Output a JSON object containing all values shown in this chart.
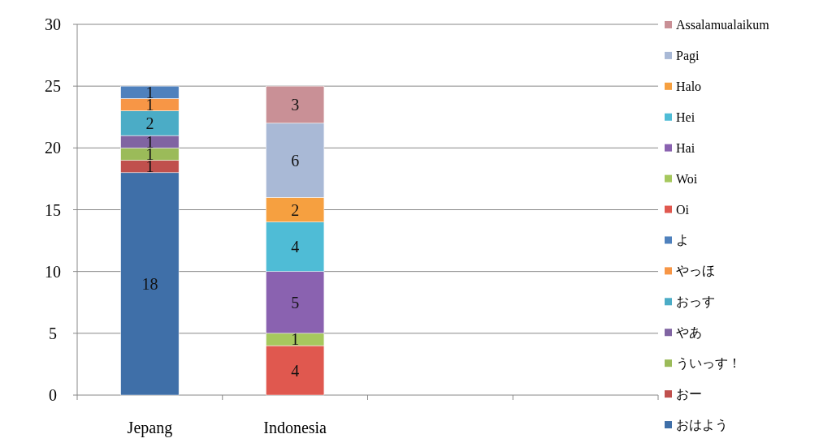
{
  "chart_data": {
    "type": "bar",
    "stacked": true,
    "categories": [
      "Jepang",
      "Indonesia",
      null,
      null
    ],
    "series": [
      {
        "name": "おはよう",
        "color": "#3f6fa8",
        "values": [
          18,
          null,
          null,
          null
        ]
      },
      {
        "name": "おー",
        "color": "#c0504d",
        "values": [
          1,
          null,
          null,
          null
        ]
      },
      {
        "name": "ういっす！",
        "color": "#9bbb59",
        "values": [
          1,
          null,
          null,
          null
        ]
      },
      {
        "name": "やあ",
        "color": "#8064a2",
        "values": [
          1,
          null,
          null,
          null
        ]
      },
      {
        "name": "おっす",
        "color": "#4bacc6",
        "values": [
          2,
          null,
          null,
          null
        ]
      },
      {
        "name": "やっほ",
        "color": "#f79646",
        "values": [
          1,
          null,
          null,
          null
        ]
      },
      {
        "name": "よ",
        "color": "#4f81bd",
        "values": [
          1,
          null,
          null,
          null
        ]
      },
      {
        "name": "Oi",
        "color": "#e0584f",
        "values": [
          null,
          4,
          null,
          null
        ]
      },
      {
        "name": "Woi",
        "color": "#a6c85e",
        "values": [
          null,
          1,
          null,
          null
        ]
      },
      {
        "name": "Hai",
        "color": "#8a62b0",
        "values": [
          null,
          5,
          null,
          null
        ]
      },
      {
        "name": "Hei",
        "color": "#4fbcd6",
        "values": [
          null,
          4,
          null,
          null
        ]
      },
      {
        "name": "Halo",
        "color": "#f6a040",
        "values": [
          null,
          2,
          null,
          null
        ]
      },
      {
        "name": "Pagi",
        "color": "#a9b9d6",
        "values": [
          null,
          6,
          null,
          null
        ]
      },
      {
        "name": "Assalamualaikum",
        "color": "#c99096",
        "values": [
          null,
          3,
          null,
          null
        ]
      }
    ],
    "ylim": [
      0,
      30
    ],
    "yticks": [
      0,
      5,
      10,
      15,
      20,
      25,
      30
    ],
    "grid": "y",
    "legend": "right",
    "data_labels": true
  }
}
